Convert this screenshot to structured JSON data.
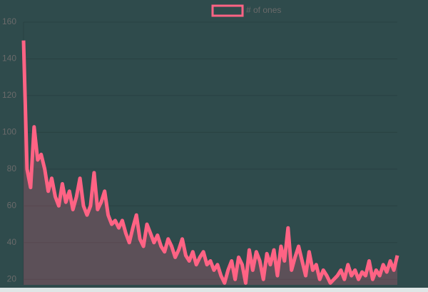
{
  "chart_data": {
    "type": "line",
    "series": [
      {
        "name": "# of ones",
        "color": "#ff6384",
        "values": [
          150,
          80,
          70,
          103,
          85,
          88,
          80,
          68,
          75,
          65,
          60,
          72,
          62,
          68,
          58,
          65,
          75,
          60,
          55,
          60,
          78,
          58,
          62,
          68,
          55,
          50,
          52,
          48,
          52,
          45,
          40,
          48,
          55,
          42,
          38,
          50,
          45,
          40,
          44,
          38,
          35,
          42,
          38,
          32,
          36,
          42,
          33,
          30,
          35,
          28,
          32,
          35,
          28,
          30,
          25,
          28,
          22,
          18,
          25,
          30,
          20,
          32,
          28,
          18,
          36,
          25,
          35,
          30,
          20,
          34,
          28,
          36,
          22,
          38,
          30,
          48,
          25,
          32,
          38,
          30,
          22,
          35,
          25,
          28,
          20,
          25,
          22,
          18,
          20,
          22,
          25,
          20,
          28,
          22,
          25,
          20,
          24,
          22,
          30,
          20,
          25,
          22,
          28,
          24,
          30,
          25,
          33
        ]
      }
    ],
    "ylim": [
      17,
      160
    ],
    "yticks": [
      20,
      40,
      60,
      80,
      100,
      120,
      140,
      160
    ],
    "grid": true,
    "legend": "top"
  }
}
